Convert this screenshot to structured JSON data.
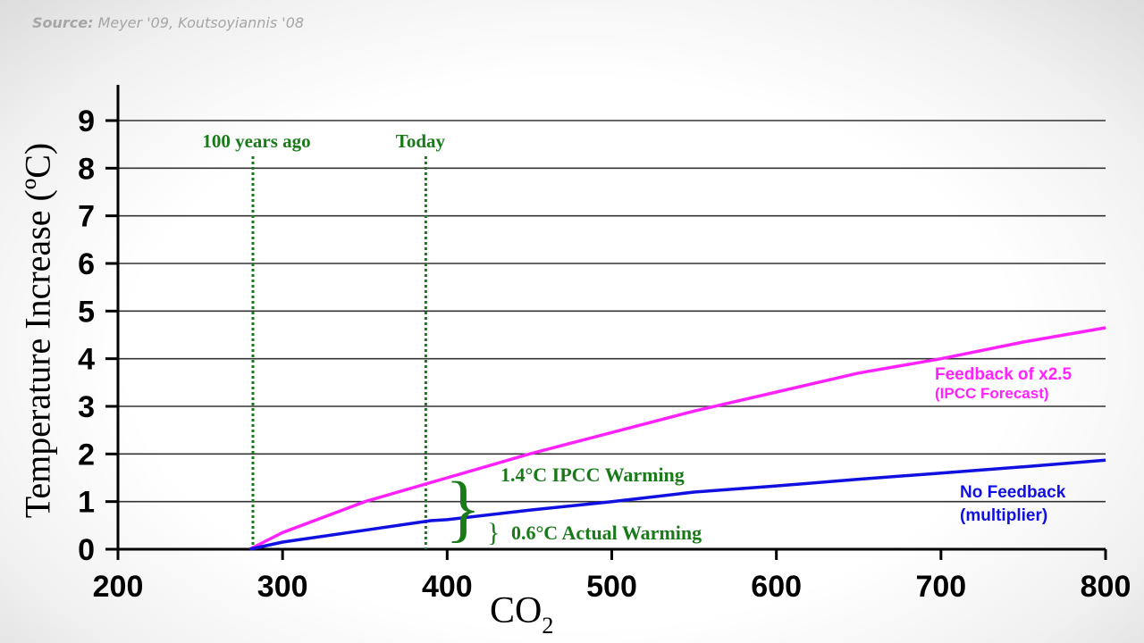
{
  "source": {
    "label": "Source:",
    "text": "Meyer '09, Koutsoyiannis '08"
  },
  "chart_data": {
    "type": "line",
    "ylabel": "Temperature Increase (ºC)",
    "xlabel": "CO",
    "xlabel_subscript": "2",
    "xlim": [
      200,
      800
    ],
    "ylim": [
      0,
      9
    ],
    "x_ticks": [
      200,
      300,
      400,
      500,
      600,
      700,
      800
    ],
    "y_ticks": [
      0,
      1,
      2,
      3,
      4,
      5,
      6,
      7,
      8,
      9
    ],
    "grid": "horizontal",
    "series": [
      {
        "name": "Feedback of x2.5",
        "sublabel": "(IPCC Forecast)",
        "color": "#ff22ff",
        "points": [
          [
            280,
            0
          ],
          [
            300,
            0.35
          ],
          [
            350,
            1.0
          ],
          [
            390,
            1.4
          ],
          [
            400,
            1.5
          ],
          [
            450,
            2.0
          ],
          [
            500,
            2.45
          ],
          [
            550,
            2.9
          ],
          [
            600,
            3.3
          ],
          [
            650,
            3.7
          ],
          [
            700,
            4.0
          ],
          [
            750,
            4.35
          ],
          [
            800,
            4.65
          ]
        ]
      },
      {
        "name": "No Feedback",
        "sublabel": "(multiplier)",
        "color": "#1010e0",
        "points": [
          [
            280,
            0
          ],
          [
            300,
            0.15
          ],
          [
            350,
            0.4
          ],
          [
            390,
            0.6
          ],
          [
            400,
            0.62
          ],
          [
            450,
            0.82
          ],
          [
            500,
            1.0
          ],
          [
            550,
            1.2
          ],
          [
            600,
            1.33
          ],
          [
            650,
            1.47
          ],
          [
            700,
            1.6
          ],
          [
            750,
            1.73
          ],
          [
            800,
            1.87
          ]
        ]
      }
    ],
    "vlines": [
      {
        "x": 282,
        "label": "100 years ago",
        "color": "#1a7a1a"
      },
      {
        "x": 387,
        "label": "Today",
        "color": "#1a7a1a"
      }
    ],
    "annotations": [
      {
        "text": "1.4°C IPCC Warming",
        "y": 1.4
      },
      {
        "text": "0.6°C Actual Warming",
        "y": 0.35
      }
    ]
  }
}
